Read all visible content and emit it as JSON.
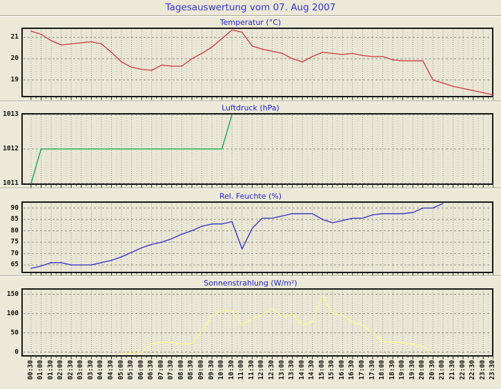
{
  "page": {
    "title": "Tagesauswertung vom 07. Aug 2007",
    "background": "#ECE9D8",
    "title_color": "#3333CC"
  },
  "x_axis": {
    "labels": [
      "00:30",
      "01:00",
      "01:30",
      "02:00",
      "02:30",
      "03:00",
      "03:30",
      "04:00",
      "04:30",
      "05:00",
      "05:30",
      "06:00",
      "06:30",
      "07:00",
      "07:30",
      "08:00",
      "08:30",
      "09:00",
      "09:30",
      "10:00",
      "10:30",
      "11:00",
      "11:30",
      "12:00",
      "12:30",
      "13:00",
      "13:30",
      "14:00",
      "14:30",
      "15:00",
      "15:30",
      "16:00",
      "16:30",
      "17:00",
      "17:30",
      "18:00",
      "18:30",
      "19:00",
      "19:30",
      "20:00",
      "20:30",
      "21:00",
      "21:30",
      "22:00",
      "22:30",
      "23:00",
      "23:30"
    ]
  },
  "chart_data": [
    {
      "type": "line",
      "title": "Temperatur (°C)",
      "color": "#CC3333",
      "grid": true,
      "legend": "none",
      "x_labels_shared": true,
      "ymin": 18.25,
      "ymax": 21.4,
      "yticks": [
        19,
        20,
        21
      ],
      "values": [
        21.3,
        21.15,
        20.85,
        20.65,
        20.7,
        20.75,
        20.8,
        20.7,
        20.3,
        19.85,
        19.6,
        19.5,
        19.45,
        19.7,
        19.65,
        19.65,
        20.0,
        20.25,
        20.55,
        20.95,
        21.35,
        21.25,
        20.6,
        20.45,
        20.35,
        20.25,
        20.0,
        19.85,
        20.1,
        20.3,
        20.25,
        20.2,
        20.25,
        20.15,
        20.1,
        20.1,
        19.95,
        19.9,
        19.9,
        19.9,
        19.0,
        18.85,
        18.7,
        18.6,
        18.5,
        18.4,
        18.3
      ]
    },
    {
      "type": "line",
      "title": "Luftdruck (hPa)",
      "color": "#00A040",
      "grid": true,
      "legend": "none",
      "x_labels_shared": true,
      "ymin": 1011,
      "ymax": 1013,
      "yticks": [
        1011,
        1012,
        1013
      ],
      "values": [
        1011,
        1012,
        1012,
        1012,
        1012,
        1012,
        1012,
        1012,
        1012,
        1012,
        1012,
        1012,
        1012,
        1012,
        1012,
        1012,
        1012,
        1012,
        1012,
        1012,
        1013,
        null,
        null,
        null,
        null,
        null,
        null,
        null,
        null,
        null,
        null,
        null,
        null,
        null,
        null,
        null,
        null,
        null,
        null,
        null,
        null,
        null,
        null,
        null,
        null,
        null,
        null
      ]
    },
    {
      "type": "line",
      "title": "Rel. Feuchte (%)",
      "color": "#2A2AC8",
      "grid": true,
      "legend": "none",
      "x_labels_shared": true,
      "ymin": 62,
      "ymax": 92.3,
      "yticks": [
        65,
        70,
        75,
        80,
        85,
        90
      ],
      "values": [
        63.5,
        64.5,
        66,
        66,
        65,
        65,
        65,
        66,
        67,
        68.5,
        70.5,
        72.5,
        74,
        75,
        76.5,
        78.5,
        80,
        82,
        83,
        83,
        84,
        72,
        81,
        85.5,
        85.5,
        86.5,
        87.5,
        87.5,
        87.5,
        85,
        83.5,
        84.5,
        85.5,
        85.5,
        87,
        87.5,
        87.5,
        87.5,
        88,
        90,
        90,
        92,
        null,
        null,
        null,
        null,
        null
      ]
    },
    {
      "type": "line",
      "title": "Sonnenstrahlung (W/m²)",
      "color": "#FAFA8C",
      "grid": true,
      "legend": "none",
      "x_labels_shared": true,
      "ymin": -8,
      "ymax": 162,
      "yticks": [
        0,
        50,
        100,
        150
      ],
      "values": [
        null,
        null,
        null,
        null,
        null,
        null,
        null,
        null,
        null,
        -3,
        -3,
        -1,
        22,
        26,
        25,
        21,
        23,
        55,
        95,
        108,
        107,
        70,
        87,
        97,
        113,
        92,
        99,
        70,
        79,
        148,
        101,
        96,
        77,
        70,
        50,
        27,
        26,
        25,
        20,
        14,
        1,
        null,
        null,
        null,
        null,
        null,
        null
      ]
    }
  ]
}
